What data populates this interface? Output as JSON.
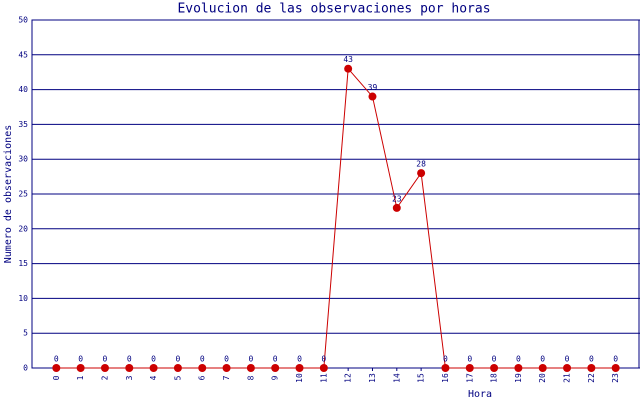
{
  "chart_data": {
    "type": "line",
    "title": "Evolucion de las observaciones por horas",
    "x_label": "Hora",
    "y_label": "Numero de observaciones",
    "categories": [
      "0",
      "1",
      "2",
      "3",
      "4",
      "5",
      "6",
      "7",
      "8",
      "9",
      "10",
      "11",
      "12",
      "13",
      "14",
      "15",
      "16",
      "17",
      "18",
      "19",
      "20",
      "21",
      "22",
      "23"
    ],
    "series": [
      {
        "name": "observaciones",
        "color": "#cc0000",
        "values": [
          0,
          0,
          0,
          0,
          0,
          0,
          0,
          0,
          0,
          0,
          0,
          0,
          43,
          39,
          23,
          28,
          0,
          0,
          0,
          0,
          0,
          0,
          0,
          0
        ]
      }
    ],
    "ylim": [
      0,
      50
    ],
    "yticks": [
      0,
      5,
      10,
      15,
      20,
      25,
      30,
      35,
      40,
      45,
      50
    ],
    "grid": true
  }
}
